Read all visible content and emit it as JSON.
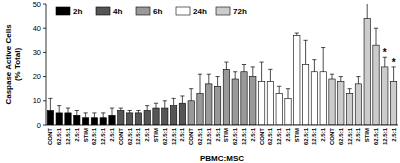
{
  "chart_data": {
    "type": "bar",
    "x_label": "PBMC:MSC",
    "y_label": "Caspase Active Cells (% Total)",
    "categories": [
      "CONT",
      "62.5:1",
      "12.5:1",
      "2.5:1",
      "STIM",
      "62.5:1",
      "12.5:1",
      "2.5:1",
      "CONT",
      "62.5:1",
      "12.5:1",
      "2.5:1",
      "STIM",
      "62.5:1",
      "12.5:1",
      "2.5:1",
      "CONT",
      "62.5:1",
      "12.5:1",
      "2.5:1",
      "STIM",
      "62.5:1",
      "12.5:1",
      "2.5:1",
      "CONT",
      "62.5:1",
      "12.5:1",
      "2.5:1",
      "STIM",
      "62.5:1",
      "12.5:1",
      "2.5:1",
      "CONT",
      "62.5:1",
      "12.5:1",
      "2.5:1",
      "STIM",
      "62.5:1",
      "12.5:1",
      "2.5:1"
    ],
    "series": [
      {
        "name": "2h",
        "color": "#000000",
        "values": [
          6,
          5,
          5,
          4,
          3,
          3,
          3,
          4,
          null,
          null,
          null,
          null,
          null,
          null,
          null,
          null,
          null,
          null,
          null,
          null,
          null,
          null,
          null,
          null,
          null,
          null,
          null,
          null,
          null,
          null,
          null,
          null,
          null,
          null,
          null,
          null,
          null,
          null,
          null,
          null
        ],
        "errors": [
          5,
          3,
          2,
          2,
          2,
          2,
          2,
          3,
          null,
          null,
          null,
          null,
          null,
          null,
          null,
          null,
          null,
          null,
          null,
          null,
          null,
          null,
          null,
          null,
          null,
          null,
          null,
          null,
          null,
          null,
          null,
          null,
          null,
          null,
          null,
          null,
          null,
          null,
          null,
          null
        ]
      },
      {
        "name": "4h",
        "color": "#555555",
        "values": [
          null,
          null,
          null,
          null,
          null,
          null,
          null,
          null,
          6,
          5,
          5,
          6,
          7,
          7,
          8,
          9,
          null,
          null,
          null,
          null,
          null,
          null,
          null,
          null,
          null,
          null,
          null,
          null,
          null,
          null,
          null,
          null,
          null,
          null,
          null,
          null,
          null,
          null,
          null,
          null
        ],
        "errors": [
          null,
          null,
          null,
          null,
          null,
          null,
          null,
          null,
          1,
          1,
          1,
          2,
          2,
          3,
          3,
          3,
          null,
          null,
          null,
          null,
          null,
          null,
          null,
          null,
          null,
          null,
          null,
          null,
          null,
          null,
          null,
          null,
          null,
          null,
          null,
          null,
          null,
          null,
          null,
          null
        ]
      },
      {
        "name": "6h",
        "color": "#999999",
        "values": [
          null,
          null,
          null,
          null,
          null,
          null,
          null,
          null,
          null,
          null,
          null,
          null,
          null,
          null,
          null,
          null,
          10,
          13,
          17,
          16,
          23,
          19,
          22,
          20,
          null,
          null,
          null,
          null,
          null,
          null,
          null,
          null,
          null,
          null,
          null,
          null,
          null,
          null,
          null,
          null
        ],
        "errors": [
          null,
          null,
          null,
          null,
          null,
          null,
          null,
          null,
          null,
          null,
          null,
          null,
          null,
          null,
          null,
          null,
          5,
          8,
          4,
          4,
          3,
          3,
          3,
          4,
          null,
          null,
          null,
          null,
          null,
          null,
          null,
          null,
          null,
          null,
          null,
          null,
          null,
          null,
          null,
          null
        ]
      },
      {
        "name": "24h",
        "color": "#ffffff",
        "values": [
          null,
          null,
          null,
          null,
          null,
          null,
          null,
          null,
          null,
          null,
          null,
          null,
          null,
          null,
          null,
          null,
          null,
          null,
          null,
          null,
          null,
          null,
          null,
          null,
          18,
          18,
          13,
          11,
          37,
          25,
          22,
          22,
          null,
          null,
          null,
          null,
          null,
          null,
          null,
          null
        ],
        "errors": [
          null,
          null,
          null,
          null,
          null,
          null,
          null,
          null,
          null,
          null,
          null,
          null,
          null,
          null,
          null,
          null,
          null,
          null,
          null,
          null,
          null,
          null,
          null,
          null,
          8,
          5,
          3,
          4,
          1,
          10,
          5,
          10,
          null,
          null,
          null,
          null,
          null,
          null,
          null,
          null
        ]
      },
      {
        "name": "72h",
        "color": "#cccccc",
        "values": [
          null,
          null,
          null,
          null,
          null,
          null,
          null,
          null,
          null,
          null,
          null,
          null,
          null,
          null,
          null,
          null,
          null,
          null,
          null,
          null,
          null,
          null,
          null,
          null,
          null,
          null,
          null,
          null,
          null,
          null,
          null,
          null,
          19,
          18,
          13,
          17,
          44,
          33,
          24,
          18
        ],
        "errors": [
          null,
          null,
          null,
          null,
          null,
          null,
          null,
          null,
          null,
          null,
          null,
          null,
          null,
          null,
          null,
          null,
          null,
          null,
          null,
          null,
          null,
          null,
          null,
          null,
          null,
          null,
          null,
          null,
          null,
          null,
          null,
          null,
          2,
          2,
          2,
          3,
          12,
          7,
          4,
          6
        ]
      }
    ],
    "annotations": [
      {
        "text": "*",
        "series": 4,
        "index": 38
      },
      {
        "text": "*",
        "series": 4,
        "index": 39
      }
    ],
    "ylim": [
      0,
      50
    ],
    "yticks": [
      0,
      10,
      20,
      30,
      40,
      50
    ],
    "grid": false,
    "legend": "top-left"
  }
}
